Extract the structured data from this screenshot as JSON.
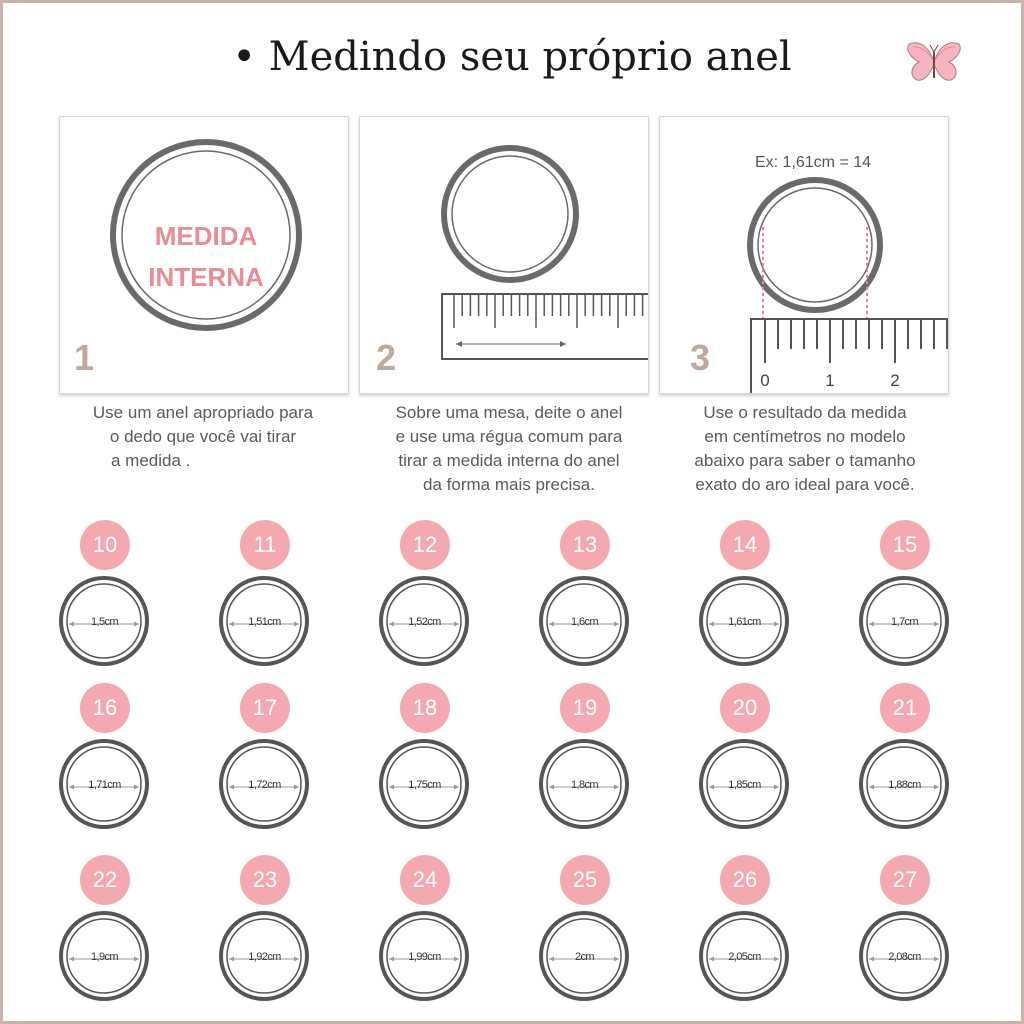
{
  "title": "• Medindo seu próprio anel",
  "decoration": {
    "icon": "butterfly-icon",
    "colors": [
      "#f6b5c0",
      "#9a6b6e"
    ]
  },
  "accent_color": "#f4a9b1",
  "step_color": "#c1a89f",
  "steps": [
    {
      "number": "1",
      "circle_text": [
        "MEDIDA",
        "INTERNA"
      ],
      "caption": [
        "Use um anel apropriado para",
        "o dedo que você vai tirar",
        "a medida ."
      ]
    },
    {
      "number": "2",
      "caption": [
        "Sobre uma mesa, deite o anel",
        "e use uma régua comum para",
        "tirar a medida interna do anel",
        "da forma mais precisa."
      ]
    },
    {
      "number": "3",
      "example": "Ex: 1,61cm = 14",
      "ruler_labels": [
        "0",
        "1",
        "2"
      ],
      "caption": [
        "Use o resultado da medida",
        "em centímetros no modelo",
        "abaixo para saber o tamanho",
        "exato do aro ideal para você."
      ]
    }
  ],
  "sizes": [
    {
      "size": "10",
      "diameter": "1,5cm"
    },
    {
      "size": "11",
      "diameter": "1,51cm"
    },
    {
      "size": "12",
      "diameter": "1,52cm"
    },
    {
      "size": "13",
      "diameter": "1,6cm"
    },
    {
      "size": "14",
      "diameter": "1,61cm"
    },
    {
      "size": "15",
      "diameter": "1,7cm"
    },
    {
      "size": "16",
      "diameter": "1,71cm"
    },
    {
      "size": "17",
      "diameter": "1,72cm"
    },
    {
      "size": "18",
      "diameter": "1,75cm"
    },
    {
      "size": "19",
      "diameter": "1,8cm"
    },
    {
      "size": "20",
      "diameter": "1,85cm"
    },
    {
      "size": "21",
      "diameter": "1,88cm"
    },
    {
      "size": "22",
      "diameter": "1,9cm"
    },
    {
      "size": "23",
      "diameter": "1,92cm"
    },
    {
      "size": "24",
      "diameter": "1,99cm"
    },
    {
      "size": "25",
      "diameter": "2cm"
    },
    {
      "size": "26",
      "diameter": "2,05cm"
    },
    {
      "size": "27",
      "diameter": "2,08cm"
    }
  ]
}
